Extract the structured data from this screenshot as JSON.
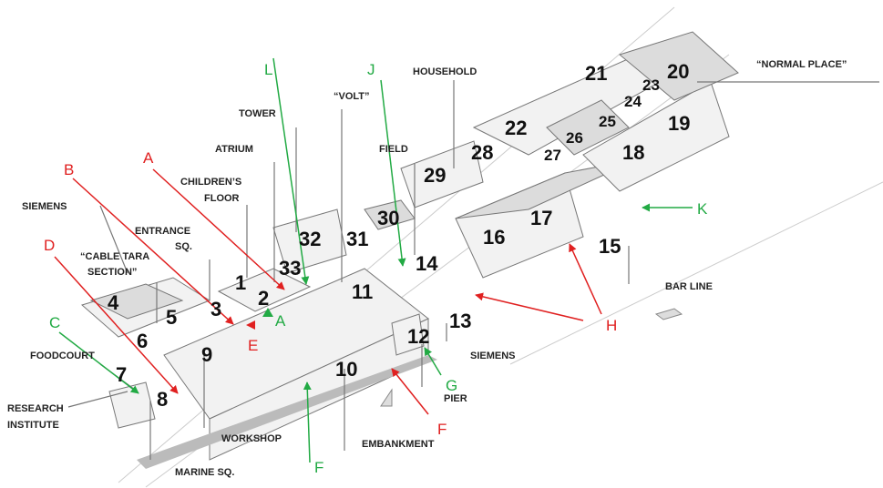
{
  "places": [
    {
      "lines": [
        "SIEMENS"
      ]
    },
    {
      "lines": [
        "“CABLE TARA",
        "SECTION”"
      ]
    },
    {
      "lines": [
        "ENTRANCE",
        "SQ."
      ]
    },
    {
      "lines": [
        "CHILDREN’S",
        "FLOOR"
      ]
    },
    {
      "lines": [
        "ATRIUM"
      ]
    },
    {
      "lines": [
        "TOWER"
      ]
    },
    {
      "lines": [
        "“VOLT”"
      ]
    },
    {
      "lines": [
        "FIELD"
      ]
    },
    {
      "lines": [
        "HOUSEHOLD"
      ]
    },
    {
      "lines": [
        "“NORMAL PLACE”"
      ]
    },
    {
      "lines": [
        "BAR LINE"
      ]
    },
    {
      "lines": [
        "SIEMENS"
      ]
    },
    {
      "lines": [
        "PIER"
      ]
    },
    {
      "lines": [
        "EMBANKMENT"
      ]
    },
    {
      "lines": [
        "WORKSHOP"
      ]
    },
    {
      "lines": [
        "MARINE SQ."
      ]
    },
    {
      "lines": [
        "FOODCOURT"
      ]
    },
    {
      "lines": [
        "RESEARCH",
        "INSTITUTE"
      ]
    }
  ],
  "buildings": [
    1,
    2,
    3,
    4,
    5,
    6,
    7,
    8,
    9,
    10,
    11,
    12,
    13,
    14,
    15,
    16,
    17,
    18,
    19,
    20,
    21,
    22,
    23,
    24,
    25,
    26,
    27,
    28,
    29,
    30,
    31,
    32,
    33
  ],
  "views": [
    {
      "letter": "B",
      "color": "#e02020"
    },
    {
      "letter": "A",
      "color": "#e02020"
    },
    {
      "letter": "D",
      "color": "#e02020"
    },
    {
      "letter": "E",
      "color": "#e02020"
    },
    {
      "letter": "H",
      "color": "#e02020"
    },
    {
      "letter": "F",
      "color": "#e02020"
    },
    {
      "letter": "L",
      "color": "#22aa44"
    },
    {
      "letter": "J",
      "color": "#22aa44"
    },
    {
      "letter": "C",
      "color": "#22aa44"
    },
    {
      "letter": "A",
      "color": "#22aa44"
    },
    {
      "letter": "K",
      "color": "#22aa44"
    },
    {
      "letter": "G",
      "color": "#22aa44"
    },
    {
      "letter": "F",
      "color": "#22aa44"
    }
  ]
}
